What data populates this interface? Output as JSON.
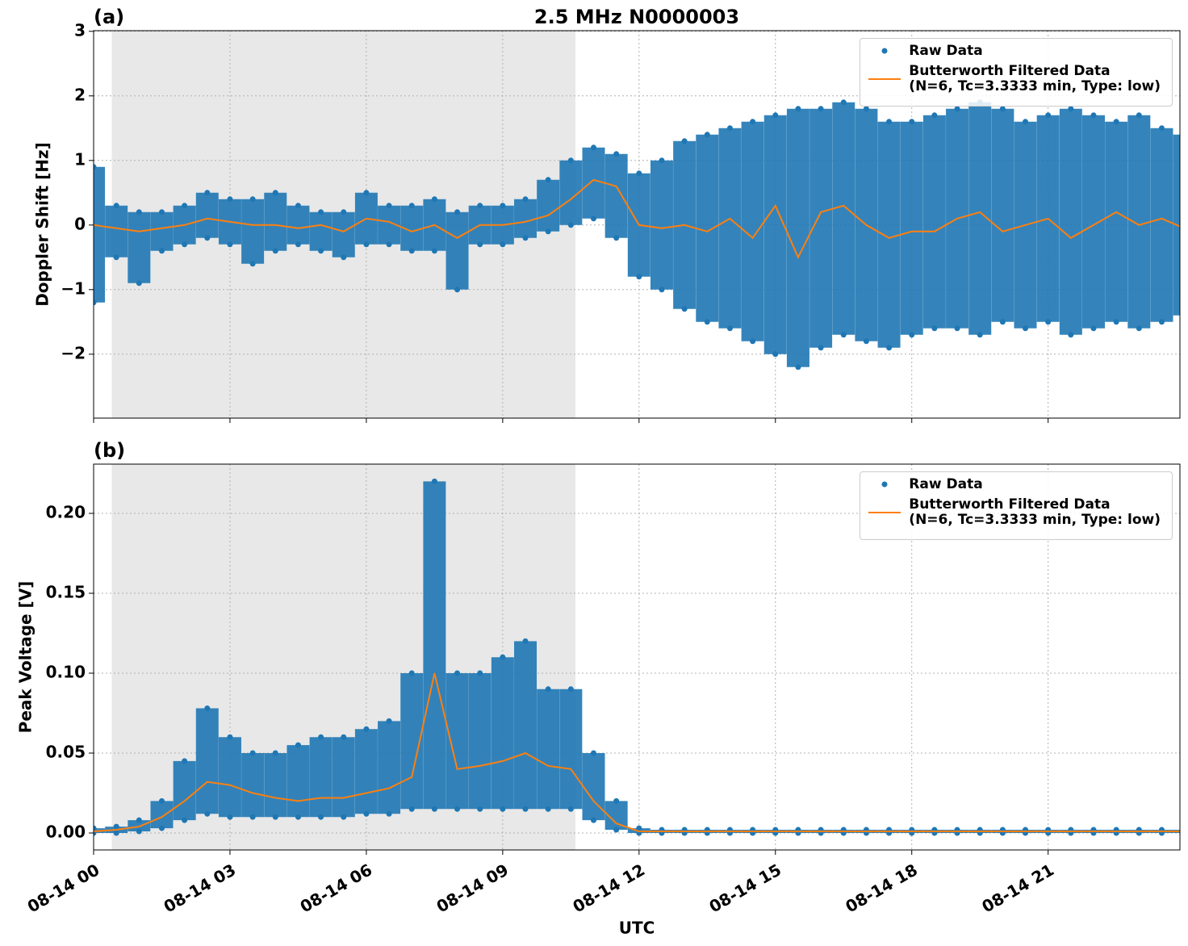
{
  "chart_data": [
    {
      "type": "scatter_line",
      "title": "2.5 MHz N0000003",
      "panel_label": "(a)",
      "ylabel": "Doppler Shift [Hz]",
      "x": [
        0,
        0.5,
        1,
        1.5,
        2,
        2.5,
        3,
        3.5,
        4,
        4.5,
        5,
        5.5,
        6,
        6.5,
        7,
        7.5,
        8,
        8.5,
        9,
        9.5,
        10,
        10.5,
        11,
        11.5,
        12,
        12.5,
        13,
        13.5,
        14,
        14.5,
        15,
        15.5,
        16,
        16.5,
        17,
        17.5,
        18,
        18.5,
        19,
        19.5,
        20,
        20.5,
        21,
        21.5,
        22,
        22.5,
        23,
        23.5,
        24
      ],
      "xlim": [
        0,
        23.9
      ],
      "xticks": [
        0,
        3,
        6,
        9,
        12,
        15,
        18,
        21
      ],
      "ylim": [
        -2.99,
        3.01
      ],
      "yticks": [
        {
          "value": -2,
          "label": "−2"
        },
        {
          "value": -1,
          "label": "−1"
        },
        0,
        1,
        2,
        3
      ],
      "grid": true,
      "shade": [
        0.4,
        10.6
      ],
      "legend": "upper right",
      "raw": {
        "name": "Raw Data",
        "color": "#1f77b4",
        "high": [
          0.9,
          0.3,
          0.2,
          0.2,
          0.3,
          0.5,
          0.4,
          0.4,
          0.5,
          0.3,
          0.2,
          0.2,
          0.5,
          0.3,
          0.3,
          0.4,
          0.2,
          0.3,
          0.3,
          0.4,
          0.7,
          1.0,
          1.2,
          1.1,
          0.8,
          1.0,
          1.3,
          1.4,
          1.5,
          1.6,
          1.7,
          1.8,
          1.8,
          1.9,
          1.8,
          1.6,
          1.6,
          1.7,
          1.8,
          1.9,
          1.8,
          1.6,
          1.7,
          1.8,
          1.7,
          1.6,
          1.7,
          1.5,
          1.4
        ],
        "low": [
          -1.2,
          -0.5,
          -0.9,
          -0.4,
          -0.3,
          -0.2,
          -0.3,
          -0.6,
          -0.4,
          -0.3,
          -0.4,
          -0.5,
          -0.3,
          -0.3,
          -0.4,
          -0.4,
          -1.0,
          -0.3,
          -0.3,
          -0.2,
          -0.1,
          0.0,
          0.1,
          -0.2,
          -0.8,
          -1.0,
          -1.3,
          -1.5,
          -1.6,
          -1.8,
          -2.0,
          -2.2,
          -1.9,
          -1.7,
          -1.8,
          -1.9,
          -1.7,
          -1.6,
          -1.6,
          -1.7,
          -1.5,
          -1.6,
          -1.5,
          -1.7,
          -1.6,
          -1.5,
          -1.6,
          -1.5,
          -1.4
        ]
      },
      "filtered": {
        "name": "Butterworth Filtered Data\n(N=6, Tc=3.3333 min, Type: low)",
        "color": "#ff7f0e",
        "values": [
          0,
          -0.05,
          -0.1,
          -0.05,
          0.0,
          0.1,
          0.05,
          0.0,
          0.0,
          -0.05,
          0.0,
          -0.1,
          0.1,
          0.05,
          -0.1,
          0.0,
          -0.2,
          0.0,
          0.0,
          0.05,
          0.15,
          0.4,
          0.7,
          0.6,
          0.0,
          -0.05,
          0.0,
          -0.1,
          0.1,
          -0.2,
          0.3,
          -0.5,
          0.2,
          0.3,
          0.0,
          -0.2,
          -0.1,
          -0.1,
          0.1,
          0.2,
          -0.1,
          0.0,
          0.1,
          -0.2,
          0.0,
          0.2,
          0.0,
          0.1,
          -0.05
        ]
      }
    },
    {
      "type": "scatter_line",
      "panel_label": "(b)",
      "ylabel": "Peak Voltage [V]",
      "xlabel": "UTC",
      "x": [
        0,
        0.5,
        1,
        1.5,
        2,
        2.5,
        3,
        3.5,
        4,
        4.5,
        5,
        5.5,
        6,
        6.5,
        7,
        7.5,
        8,
        8.5,
        9,
        9.5,
        10,
        10.5,
        11,
        11.5,
        12,
        12.5,
        13,
        13.5,
        14,
        14.5,
        15,
        15.5,
        16,
        16.5,
        17,
        17.5,
        18,
        18.5,
        19,
        19.5,
        20,
        20.5,
        21,
        21.5,
        22,
        22.5,
        23,
        23.5,
        24
      ],
      "xlim": [
        0,
        23.9
      ],
      "xticks": [
        {
          "value": 0,
          "label": "08-14 00"
        },
        {
          "value": 3,
          "label": "08-14 03"
        },
        {
          "value": 6,
          "label": "08-14 06"
        },
        {
          "value": 9,
          "label": "08-14 09"
        },
        {
          "value": 12,
          "label": "08-14 12"
        },
        {
          "value": 15,
          "label": "08-14 15"
        },
        {
          "value": 18,
          "label": "08-14 18"
        },
        {
          "value": 21,
          "label": "08-14 21"
        }
      ],
      "ylim": [
        -0.0106,
        0.2308
      ],
      "yticks": [
        {
          "value": 0,
          "label": "0.00"
        },
        0.05,
        {
          "value": 0.1,
          "label": "0.10"
        },
        0.15,
        {
          "value": 0.2,
          "label": "0.20"
        }
      ],
      "grid": true,
      "shade": [
        0.4,
        10.6
      ],
      "legend": "upper right",
      "raw": {
        "name": "Raw Data",
        "color": "#1f77b4",
        "high": [
          0.003,
          0.004,
          0.008,
          0.02,
          0.045,
          0.078,
          0.06,
          0.05,
          0.05,
          0.055,
          0.06,
          0.06,
          0.065,
          0.07,
          0.1,
          0.22,
          0.1,
          0.1,
          0.11,
          0.12,
          0.09,
          0.09,
          0.05,
          0.02,
          0.003,
          0.002,
          0.002,
          0.002,
          0.002,
          0.002,
          0.002,
          0.002,
          0.002,
          0.002,
          0.002,
          0.002,
          0.002,
          0.002,
          0.002,
          0.002,
          0.002,
          0.002,
          0.002,
          0.002,
          0.002,
          0.002,
          0.002,
          0.002,
          0.002
        ],
        "low": [
          0,
          0,
          0.001,
          0.003,
          0.008,
          0.012,
          0.01,
          0.01,
          0.01,
          0.01,
          0.01,
          0.01,
          0.012,
          0.012,
          0.015,
          0.015,
          0.015,
          0.015,
          0.015,
          0.015,
          0.015,
          0.015,
          0.008,
          0.002,
          0,
          0,
          0,
          0,
          0,
          0,
          0,
          0,
          0,
          0,
          0,
          0,
          0,
          0,
          0,
          0,
          0,
          0,
          0,
          0,
          0,
          0,
          0,
          0,
          0
        ]
      },
      "filtered": {
        "name": "Butterworth Filtered Data\n(N=6, Tc=3.3333 min, Type: low)",
        "color": "#ff7f0e",
        "values": [
          0.001,
          0.002,
          0.004,
          0.01,
          0.02,
          0.032,
          0.03,
          0.025,
          0.022,
          0.02,
          0.022,
          0.022,
          0.025,
          0.028,
          0.035,
          0.1,
          0.04,
          0.042,
          0.045,
          0.05,
          0.042,
          0.04,
          0.02,
          0.006,
          0.001,
          0.001,
          0.001,
          0.001,
          0.001,
          0.001,
          0.001,
          0.001,
          0.001,
          0.001,
          0.001,
          0.001,
          0.001,
          0.001,
          0.001,
          0.001,
          0.001,
          0.001,
          0.001,
          0.001,
          0.001,
          0.001,
          0.001,
          0.001,
          0.001
        ]
      }
    }
  ]
}
